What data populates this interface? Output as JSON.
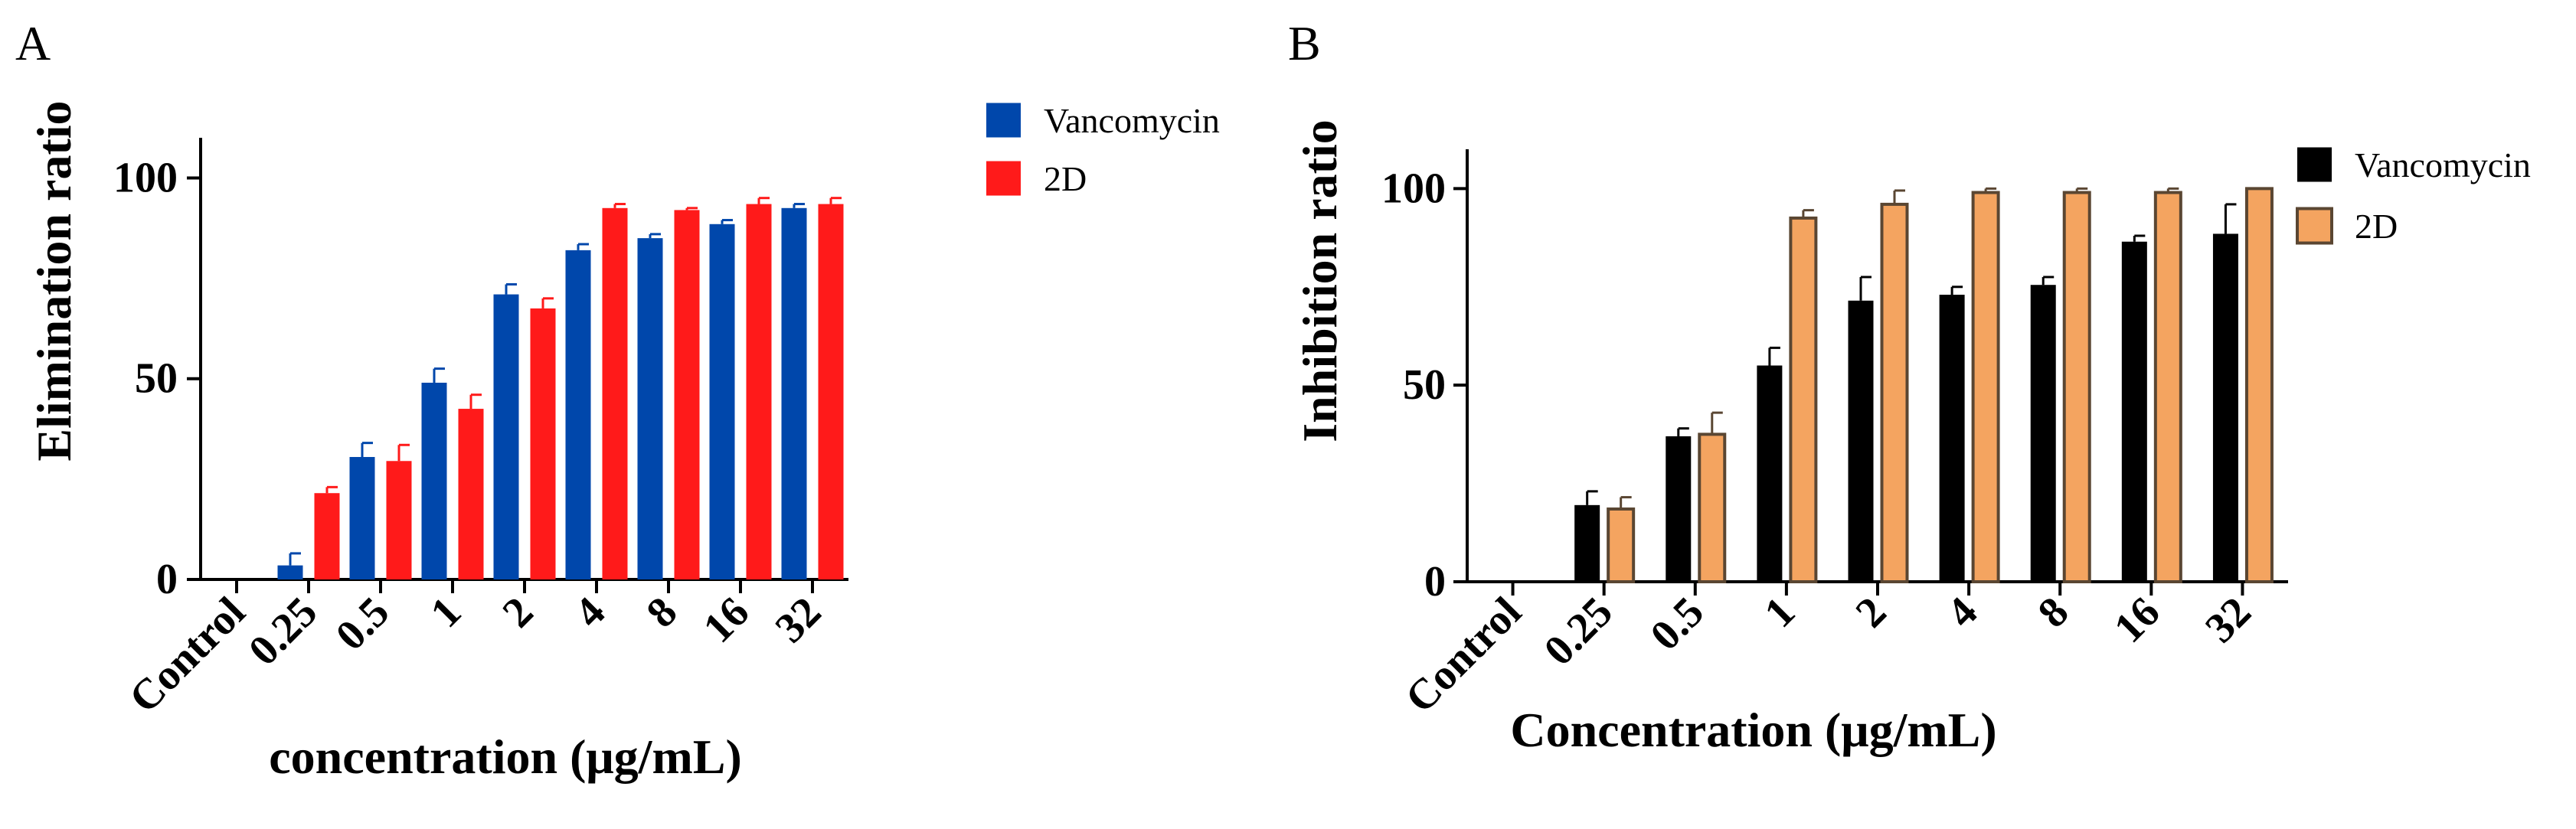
{
  "chart_data": [
    {
      "panel_label": "A",
      "type": "bar",
      "categories": [
        "Control",
        "0.25",
        "0.5",
        "1",
        "2",
        "4",
        "8",
        "16",
        "32"
      ],
      "series": [
        {
          "name": "Vancomycin",
          "color": "#0047ab",
          "edge": "#0047ab",
          "values": [
            0,
            3.5,
            30.5,
            49,
            71,
            82,
            85,
            88.5,
            92.5
          ],
          "errors": [
            0,
            3,
            3.5,
            3.5,
            2.5,
            1.5,
            1,
            1,
            1
          ]
        },
        {
          "name": "2D",
          "color": "#ff1a1a",
          "edge": "#ff1a1a",
          "values": [
            0,
            21.5,
            29.5,
            42.5,
            67.5,
            92.5,
            92,
            93.5,
            93.5
          ],
          "errors": [
            0,
            1.5,
            4,
            3.5,
            2.5,
            1,
            0.5,
            1.5,
            1.5
          ]
        }
      ],
      "title": "",
      "xlabel": "concentration (μg/mL)",
      "ylabel": "Elimination ratio",
      "yticks": [
        "0",
        "50",
        "100"
      ],
      "ylim": [
        0,
        110
      ],
      "legend_position": "right"
    },
    {
      "panel_label": "B",
      "type": "bar",
      "categories": [
        "Control",
        "0.25",
        "0.5",
        "1",
        "2",
        "4",
        "8",
        "16",
        "32"
      ],
      "series": [
        {
          "name": "Vancomycin",
          "color": "#000000",
          "edge": "#000000",
          "values": [
            0,
            19.5,
            37,
            55,
            71.5,
            73,
            75.5,
            86.5,
            88.5
          ],
          "errors": [
            0,
            3.5,
            2,
            4.5,
            6,
            2,
            2,
            1.5,
            7.5
          ]
        },
        {
          "name": "2D",
          "color": "#f4a460",
          "edge": "#5a4632",
          "values": [
            0,
            18.5,
            37.5,
            92.5,
            96,
            99,
            99,
            99,
            100
          ],
          "errors": [
            0,
            3,
            5.5,
            2,
            3.5,
            1,
            1,
            1,
            0
          ]
        }
      ],
      "title": "",
      "xlabel": "Concentration (μg/mL)",
      "ylabel": "Inhibition ratio",
      "yticks": [
        "0",
        "50",
        "100"
      ],
      "ylim": [
        0,
        110
      ],
      "legend_position": "right"
    }
  ]
}
